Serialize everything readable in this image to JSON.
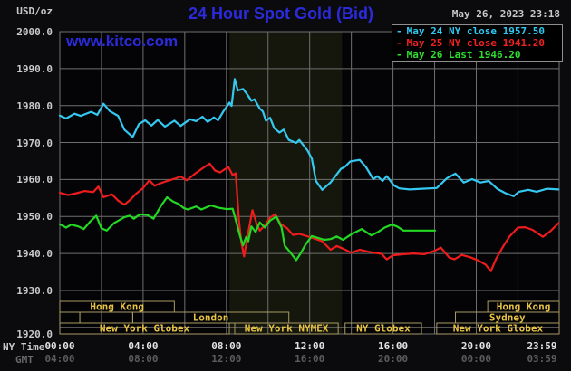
{
  "header": {
    "unit": "USD/oz",
    "title": "24 Hour Spot Gold (Bid)",
    "datetime": "May 26, 2023 23:18",
    "watermark": "www.kitco.com"
  },
  "legend": {
    "items": [
      {
        "dash": "-",
        "label": "May 24 NY close 1957.50",
        "color": "#2fc9f2"
      },
      {
        "dash": "-",
        "label": "May 25 NY close 1941.20",
        "color": "#f22222"
      },
      {
        "dash": "-",
        "label": "May 26 Last 1946.20",
        "color": "#2ee02e"
      }
    ]
  },
  "axes": {
    "ny_label": "NY Time",
    "gmt_label": "GMT",
    "ny_ticks": [
      [
        0,
        "00:00"
      ],
      [
        4,
        "04:00"
      ],
      [
        8,
        "08:00"
      ],
      [
        12,
        "12:00"
      ],
      [
        16,
        "16:00"
      ],
      [
        20,
        "20:00"
      ],
      [
        23.983,
        "23:59"
      ]
    ],
    "gmt_ticks": [
      [
        0,
        "04:00"
      ],
      [
        4,
        "08:00"
      ],
      [
        8,
        "12:00"
      ],
      [
        12,
        "16:00"
      ],
      [
        16,
        "20:00"
      ],
      [
        20,
        "00:00"
      ],
      [
        23.983,
        "03:59"
      ]
    ],
    "y_ticks": [
      [
        2000,
        "2000.0"
      ],
      [
        1990,
        "1990.0"
      ],
      [
        1980,
        "1980.0"
      ],
      [
        1970,
        "1970.0"
      ],
      [
        1960,
        "1960.0"
      ],
      [
        1950,
        "1950.0"
      ],
      [
        1940,
        "1940.0"
      ],
      [
        1930,
        "1930.0"
      ],
      [
        1920,
        "1920.0"
      ]
    ]
  },
  "colors": {
    "plot_bg": "#040406",
    "band_bg": "#15170d",
    "grid": "#6f6f6f",
    "session_border": "#a89a62",
    "session_text": "#e8c444"
  },
  "chart_data": {
    "type": "line",
    "title": "24 Hour Spot Gold (Bid)",
    "x_axis": {
      "label": "NY Time (bottom row GMT = NY+4)",
      "range_hours": [
        0,
        23.983
      ],
      "gridline_every_hours": 2
    },
    "y_axis": {
      "label": "USD/oz",
      "range": [
        1920,
        2000
      ],
      "tick_step": 10
    },
    "shaded_band_hours": [
      8.15,
      13.55
    ],
    "legend_position": "top-right",
    "series": [
      {
        "name": "May 24",
        "legend": "May 24 NY close 1957.50",
        "close": 1957.5,
        "color": "#35c8f0",
        "points": [
          [
            0,
            1977.3
          ],
          [
            0.3,
            1976.5
          ],
          [
            0.7,
            1977.8
          ],
          [
            1,
            1977.2
          ],
          [
            1.5,
            1978.3
          ],
          [
            1.8,
            1977.5
          ],
          [
            2.1,
            1980.5
          ],
          [
            2.4,
            1978.5
          ],
          [
            2.8,
            1977.2
          ],
          [
            3.1,
            1973.5
          ],
          [
            3.5,
            1971.5
          ],
          [
            3.8,
            1975
          ],
          [
            4.1,
            1976
          ],
          [
            4.4,
            1974.6
          ],
          [
            4.7,
            1976.1
          ],
          [
            5.05,
            1974.3
          ],
          [
            5.5,
            1975.9
          ],
          [
            5.8,
            1974.5
          ],
          [
            6.25,
            1976.3
          ],
          [
            6.55,
            1975.8
          ],
          [
            6.85,
            1977
          ],
          [
            7.1,
            1975.6
          ],
          [
            7.4,
            1976.8
          ],
          [
            7.6,
            1976
          ],
          [
            7.85,
            1978.4
          ],
          [
            8.05,
            1980
          ],
          [
            8.15,
            1980.8
          ],
          [
            8.25,
            1979.9
          ],
          [
            8.4,
            1987.2
          ],
          [
            8.55,
            1984.1
          ],
          [
            8.8,
            1984.5
          ],
          [
            9,
            1983
          ],
          [
            9.2,
            1981.3
          ],
          [
            9.35,
            1981.7
          ],
          [
            9.6,
            1979.2
          ],
          [
            9.75,
            1978.4
          ],
          [
            9.9,
            1975.9
          ],
          [
            10.1,
            1976.7
          ],
          [
            10.3,
            1973.9
          ],
          [
            10.55,
            1972.7
          ],
          [
            10.75,
            1973.5
          ],
          [
            11,
            1970.7
          ],
          [
            11.35,
            1969.9
          ],
          [
            11.5,
            1970.7
          ],
          [
            11.9,
            1967.8
          ],
          [
            12.1,
            1965.7
          ],
          [
            12.3,
            1959.6
          ],
          [
            12.6,
            1957.2
          ],
          [
            13,
            1959.2
          ],
          [
            13.5,
            1962.9
          ],
          [
            13.7,
            1963.5
          ],
          [
            13.95,
            1964.9
          ],
          [
            14.4,
            1965.3
          ],
          [
            14.7,
            1963.4
          ],
          [
            15.05,
            1960.1
          ],
          [
            15.25,
            1960.9
          ],
          [
            15.5,
            1959.6
          ],
          [
            15.7,
            1960.9
          ],
          [
            16.05,
            1958.4
          ],
          [
            16.3,
            1957.6
          ],
          [
            16.8,
            1957.3
          ],
          [
            17.4,
            1957.5
          ],
          [
            18.1,
            1957.7
          ],
          [
            18.6,
            1960.4
          ],
          [
            19,
            1961.6
          ],
          [
            19.4,
            1959.2
          ],
          [
            19.8,
            1960.1
          ],
          [
            20.2,
            1959.2
          ],
          [
            20.6,
            1959.6
          ],
          [
            21,
            1957.5
          ],
          [
            21.4,
            1956.3
          ],
          [
            21.8,
            1955.5
          ],
          [
            22.05,
            1956.7
          ],
          [
            22.5,
            1957.2
          ],
          [
            22.9,
            1956.7
          ],
          [
            23.4,
            1957.5
          ],
          [
            23.95,
            1957.3
          ]
        ]
      },
      {
        "name": "May 25",
        "legend": "May 25 NY close 1941.20",
        "close": 1941.2,
        "color": "#ee1c1c",
        "points": [
          [
            0,
            1956.4
          ],
          [
            0.4,
            1955.8
          ],
          [
            0.8,
            1956.3
          ],
          [
            1.2,
            1956.9
          ],
          [
            1.6,
            1956.6
          ],
          [
            1.85,
            1958.1
          ],
          [
            2.1,
            1955.2
          ],
          [
            2.5,
            1956
          ],
          [
            2.8,
            1954.3
          ],
          [
            3.1,
            1953.2
          ],
          [
            3.4,
            1954.6
          ],
          [
            3.65,
            1956.1
          ],
          [
            4,
            1957.7
          ],
          [
            4.3,
            1959.8
          ],
          [
            4.55,
            1958.3
          ],
          [
            4.8,
            1958.9
          ],
          [
            5.1,
            1959.5
          ],
          [
            5.5,
            1960.2
          ],
          [
            5.8,
            1960.8
          ],
          [
            6.1,
            1959.8
          ],
          [
            6.5,
            1961.6
          ],
          [
            6.9,
            1963.2
          ],
          [
            7.2,
            1964.3
          ],
          [
            7.45,
            1962.4
          ],
          [
            7.7,
            1961.9
          ],
          [
            7.9,
            1962.7
          ],
          [
            8.1,
            1963.3
          ],
          [
            8.3,
            1961.2
          ],
          [
            8.45,
            1961.7
          ],
          [
            8.6,
            1949
          ],
          [
            8.72,
            1943
          ],
          [
            8.85,
            1939.2
          ],
          [
            9,
            1944.2
          ],
          [
            9.25,
            1951.7
          ],
          [
            9.45,
            1948.1
          ],
          [
            9.6,
            1946.2
          ],
          [
            9.85,
            1947.6
          ],
          [
            10.1,
            1949.7
          ],
          [
            10.35,
            1950.6
          ],
          [
            10.6,
            1948
          ],
          [
            10.9,
            1946.9
          ],
          [
            11.2,
            1945
          ],
          [
            11.5,
            1945.3
          ],
          [
            11.8,
            1944.8
          ],
          [
            12.2,
            1944.1
          ],
          [
            12.6,
            1943.3
          ],
          [
            13,
            1941
          ],
          [
            13.3,
            1942
          ],
          [
            13.6,
            1941.3
          ],
          [
            14,
            1940.2
          ],
          [
            14.4,
            1941
          ],
          [
            14.8,
            1940.5
          ],
          [
            15.2,
            1940.1
          ],
          [
            15.45,
            1939.9
          ],
          [
            15.7,
            1938.4
          ],
          [
            16,
            1939.5
          ],
          [
            16.5,
            1939.8
          ],
          [
            17,
            1940
          ],
          [
            17.5,
            1939.8
          ],
          [
            18,
            1940.7
          ],
          [
            18.3,
            1941.6
          ],
          [
            18.7,
            1938.9
          ],
          [
            18.95,
            1938.4
          ],
          [
            19.3,
            1939.6
          ],
          [
            19.7,
            1939
          ],
          [
            20.1,
            1938.1
          ],
          [
            20.45,
            1937
          ],
          [
            20.7,
            1935.2
          ],
          [
            20.95,
            1938.5
          ],
          [
            21.3,
            1942
          ],
          [
            21.6,
            1944.6
          ],
          [
            22,
            1947
          ],
          [
            22.35,
            1947.1
          ],
          [
            22.7,
            1946.4
          ],
          [
            23.2,
            1944.5
          ],
          [
            23.55,
            1946
          ],
          [
            23.95,
            1948.2
          ]
        ]
      },
      {
        "name": "May 26",
        "legend": "May 26 Last 1946.20",
        "last": 1946.2,
        "color": "#22d822",
        "points": [
          [
            0,
            1947.9
          ],
          [
            0.3,
            1947
          ],
          [
            0.55,
            1947.8
          ],
          [
            0.9,
            1947.3
          ],
          [
            1.15,
            1946.6
          ],
          [
            1.45,
            1948.6
          ],
          [
            1.75,
            1950.2
          ],
          [
            2,
            1946.8
          ],
          [
            2.25,
            1946.2
          ],
          [
            2.6,
            1948.2
          ],
          [
            3.1,
            1949.8
          ],
          [
            3.35,
            1950.2
          ],
          [
            3.55,
            1949.4
          ],
          [
            3.85,
            1950.6
          ],
          [
            4.2,
            1950.4
          ],
          [
            4.5,
            1949.4
          ],
          [
            4.85,
            1952.8
          ],
          [
            5.15,
            1955.2
          ],
          [
            5.45,
            1954
          ],
          [
            5.7,
            1953.4
          ],
          [
            5.95,
            1952.3
          ],
          [
            6.15,
            1951.9
          ],
          [
            6.55,
            1952.7
          ],
          [
            6.8,
            1951.9
          ],
          [
            7.25,
            1953
          ],
          [
            7.6,
            1952.4
          ],
          [
            8,
            1952
          ],
          [
            8.3,
            1952.1
          ],
          [
            8.5,
            1948
          ],
          [
            8.65,
            1944.8
          ],
          [
            8.8,
            1942.2
          ],
          [
            8.95,
            1944.5
          ],
          [
            9.05,
            1943.3
          ],
          [
            9.2,
            1947.3
          ],
          [
            9.4,
            1945.8
          ],
          [
            9.6,
            1948.4
          ],
          [
            9.85,
            1947
          ],
          [
            10.1,
            1948.9
          ],
          [
            10.4,
            1950
          ],
          [
            10.65,
            1947
          ],
          [
            10.8,
            1942.1
          ],
          [
            11,
            1940.8
          ],
          [
            11.35,
            1938.2
          ],
          [
            11.55,
            1939.9
          ],
          [
            11.8,
            1942.4
          ],
          [
            12.1,
            1944.7
          ],
          [
            12.4,
            1944.2
          ],
          [
            12.7,
            1943.7
          ],
          [
            13,
            1943.9
          ],
          [
            13.3,
            1944.6
          ],
          [
            13.6,
            1943.7
          ],
          [
            14,
            1945.2
          ],
          [
            14.5,
            1946.6
          ],
          [
            14.95,
            1944.9
          ],
          [
            15.25,
            1945.7
          ],
          [
            15.6,
            1947
          ],
          [
            15.95,
            1947.8
          ],
          [
            16.2,
            1947.3
          ],
          [
            16.5,
            1946.2
          ],
          [
            18.02,
            1946.2
          ]
        ]
      }
    ],
    "sessions": [
      {
        "row": 1,
        "boxes": [
          {
            "label": "Hong Kong",
            "start": 0,
            "end": 5.5
          },
          {
            "label": "Hong Kong",
            "start": 20.55,
            "end": 23.983
          }
        ]
      },
      {
        "row": 2,
        "boxes": [
          {
            "label": "",
            "start": 0,
            "end": 0.96
          },
          {
            "label": "",
            "start": 0.96,
            "end": 3.5
          },
          {
            "label": "London",
            "start": 3.5,
            "end": 11.0
          },
          {
            "label": "Sydney",
            "start": 19.0,
            "end": 23.983
          }
        ]
      },
      {
        "row": 3,
        "boxes": [
          {
            "label": "New York Globex",
            "start": 0,
            "end": 8.14
          },
          {
            "label": "New York NYMEX",
            "start": 8.4,
            "end": 13.37
          },
          {
            "label": "NY Globex",
            "start": 13.7,
            "end": 17.37
          },
          {
            "label": "New York Globex",
            "start": 18.1,
            "end": 23.983
          }
        ]
      }
    ]
  }
}
